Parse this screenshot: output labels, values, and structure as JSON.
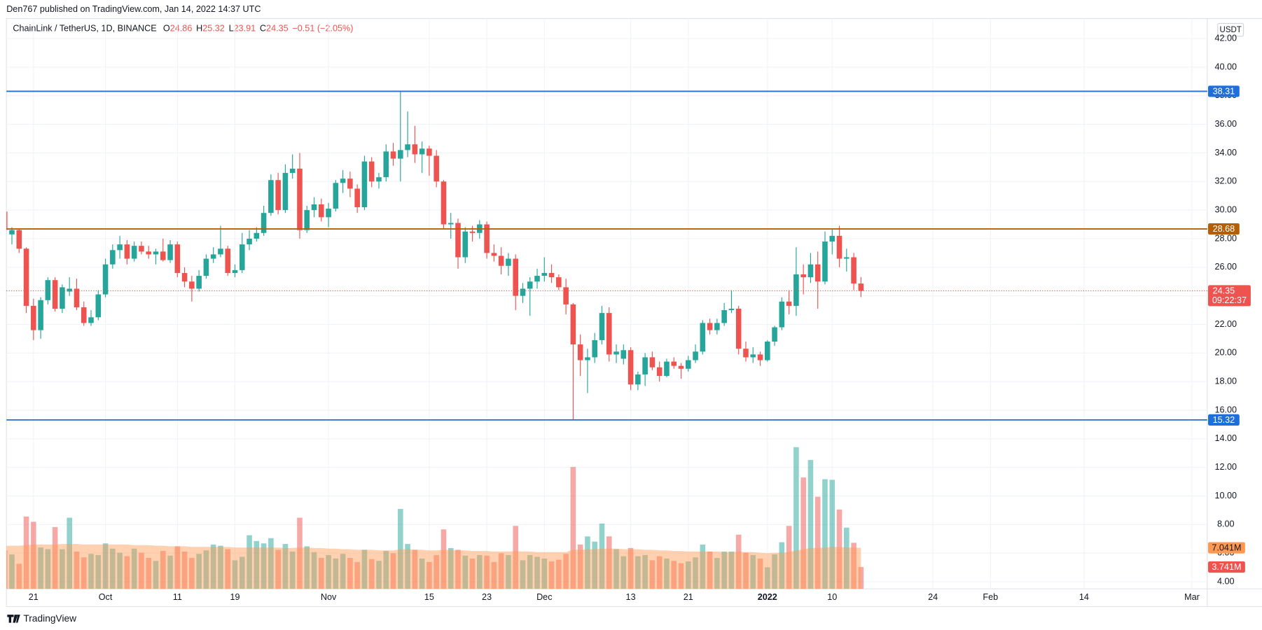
{
  "header": {
    "published": "Den767 published on TradingView.com, Jan 14, 2022 14:37 UTC",
    "brand": "TradingView"
  },
  "chart_data": {
    "type": "candlestick",
    "title": "ChainLink / TetherUS, 1D, BINANCE",
    "legend": [
      {
        "key": "O",
        "value": "24.86"
      },
      {
        "key": "H",
        "value": "25.32"
      },
      {
        "key": "L",
        "value": "23.91"
      },
      {
        "key": "C",
        "value": "24.35"
      }
    ],
    "change": "−0.51 (−2.05%)",
    "currency": "USDT",
    "countdown": "09:22:37",
    "up_color": "#26a69a",
    "down_color": "#ef5350",
    "grid": true,
    "xlim": [
      0.24,
      167.13
    ],
    "ylim": [
      3.5,
      43.4
    ],
    "yticks": [
      {
        "value": 4,
        "label": "4.00"
      },
      {
        "value": 6,
        "label": "6.00"
      },
      {
        "value": 8,
        "label": "8.00"
      },
      {
        "value": 10,
        "label": "10.00"
      },
      {
        "value": 12,
        "label": "12.00"
      },
      {
        "value": 14,
        "label": "14.00"
      },
      {
        "value": 16,
        "label": "16.00"
      },
      {
        "value": 18,
        "label": "18.00"
      },
      {
        "value": 20,
        "label": "20.00"
      },
      {
        "value": 22,
        "label": "22.00"
      },
      {
        "value": 24,
        "label": "24.00"
      },
      {
        "value": 26,
        "label": "26.00"
      },
      {
        "value": 28,
        "label": "28.00"
      },
      {
        "value": 30,
        "label": "30.00"
      },
      {
        "value": 32,
        "label": "32.00"
      },
      {
        "value": 34,
        "label": "34.00"
      },
      {
        "value": 36,
        "label": "36.00"
      },
      {
        "value": 38,
        "label": "38.00"
      },
      {
        "value": 40,
        "label": "40.00"
      },
      {
        "value": 42,
        "label": "42.00"
      }
    ],
    "xticks": [
      {
        "value": 4,
        "label": "21"
      },
      {
        "value": 14,
        "label": "Oct"
      },
      {
        "value": 24,
        "label": "11"
      },
      {
        "value": 32,
        "label": "19"
      },
      {
        "value": 45,
        "label": "Nov"
      },
      {
        "value": 59,
        "label": "15"
      },
      {
        "value": 67,
        "label": "23"
      },
      {
        "value": 75,
        "label": "Dec"
      },
      {
        "value": 87,
        "label": "13"
      },
      {
        "value": 95,
        "label": "21"
      },
      {
        "value": 106,
        "label": "2022",
        "bold": true
      },
      {
        "value": 115,
        "label": "10"
      },
      {
        "value": 129,
        "label": "24"
      },
      {
        "value": 137,
        "label": "Feb"
      },
      {
        "value": 150,
        "label": "14"
      },
      {
        "value": 165,
        "label": "Mar"
      }
    ],
    "lines": [
      {
        "value": 38.31,
        "color": "#1e6fd9"
      },
      {
        "value": 28.68,
        "color": "#b45f06"
      },
      {
        "value": 15.32,
        "color": "#1e6fd9"
      }
    ],
    "candles": [
      [
        29.9,
        30.1,
        28.5,
        28.6
      ],
      [
        28.3,
        28.8,
        27.6,
        28.6
      ],
      [
        28.6,
        28.7,
        27.0,
        27.3
      ],
      [
        27.3,
        27.4,
        22.8,
        23.3
      ],
      [
        23.3,
        23.8,
        20.9,
        21.6
      ],
      [
        21.6,
        23.9,
        21.0,
        23.7
      ],
      [
        23.7,
        25.3,
        23.4,
        25.1
      ],
      [
        25.1,
        25.3,
        22.9,
        23.1
      ],
      [
        23.1,
        24.8,
        22.8,
        24.6
      ],
      [
        24.3,
        25.3,
        24.0,
        24.5
      ],
      [
        24.5,
        25.2,
        23.0,
        23.2
      ],
      [
        23.2,
        23.6,
        21.9,
        22.1
      ],
      [
        22.1,
        23.0,
        21.9,
        22.5
      ],
      [
        22.5,
        24.4,
        22.3,
        24.1
      ],
      [
        24.1,
        26.6,
        23.9,
        26.2
      ],
      [
        26.2,
        27.6,
        25.9,
        27.2
      ],
      [
        27.2,
        28.2,
        26.6,
        27.6
      ],
      [
        27.6,
        27.9,
        26.2,
        26.6
      ],
      [
        26.6,
        27.8,
        26.4,
        27.5
      ],
      [
        27.5,
        27.8,
        26.9,
        27.1
      ],
      [
        27.1,
        27.5,
        26.6,
        26.9
      ],
      [
        26.9,
        27.3,
        26.2,
        27.1
      ],
      [
        27.1,
        28.0,
        26.4,
        26.5
      ],
      [
        26.5,
        27.9,
        26.3,
        27.6
      ],
      [
        27.6,
        27.8,
        25.3,
        25.6
      ],
      [
        25.6,
        26.0,
        24.6,
        25.0
      ],
      [
        25.0,
        25.4,
        23.6,
        24.5
      ],
      [
        24.5,
        25.8,
        24.3,
        25.4
      ],
      [
        25.4,
        26.9,
        25.2,
        26.6
      ],
      [
        26.6,
        27.4,
        26.3,
        26.9
      ],
      [
        26.9,
        28.9,
        26.7,
        27.3
      ],
      [
        27.3,
        27.5,
        25.4,
        25.6
      ],
      [
        25.6,
        26.2,
        25.3,
        25.8
      ],
      [
        25.8,
        28.4,
        25.6,
        27.6
      ],
      [
        27.6,
        28.6,
        27.2,
        28.0
      ],
      [
        28.0,
        28.8,
        27.8,
        28.4
      ],
      [
        28.4,
        30.3,
        28.2,
        29.8
      ],
      [
        29.8,
        32.5,
        29.6,
        32.1
      ],
      [
        32.1,
        32.6,
        29.7,
        30.0
      ],
      [
        30.0,
        33.2,
        29.8,
        32.6
      ],
      [
        32.6,
        33.9,
        32.2,
        32.9
      ],
      [
        32.9,
        34.0,
        28.0,
        28.6
      ],
      [
        28.6,
        30.3,
        28.4,
        30.0
      ],
      [
        30.0,
        30.9,
        29.5,
        30.4
      ],
      [
        30.4,
        30.8,
        29.2,
        29.5
      ],
      [
        29.5,
        30.5,
        28.8,
        30.1
      ],
      [
        30.1,
        32.1,
        29.9,
        31.9
      ],
      [
        31.9,
        32.8,
        31.2,
        32.2
      ],
      [
        32.2,
        32.7,
        30.9,
        31.5
      ],
      [
        31.5,
        31.8,
        29.8,
        30.2
      ],
      [
        30.2,
        33.8,
        30.0,
        33.4
      ],
      [
        33.4,
        33.7,
        31.6,
        32.0
      ],
      [
        32.0,
        32.6,
        31.5,
        32.3
      ],
      [
        32.3,
        34.6,
        32.0,
        34.1
      ],
      [
        34.1,
        34.7,
        33.1,
        33.6
      ],
      [
        33.6,
        38.3,
        32.0,
        34.2
      ],
      [
        34.2,
        36.9,
        33.7,
        34.6
      ],
      [
        34.6,
        35.9,
        33.3,
        33.9
      ],
      [
        33.9,
        34.8,
        32.6,
        34.3
      ],
      [
        34.3,
        34.5,
        32.4,
        33.8
      ],
      [
        33.8,
        34.2,
        31.6,
        32.0
      ],
      [
        32.0,
        32.1,
        28.7,
        29.0
      ],
      [
        29.0,
        29.8,
        28.0,
        29.1
      ],
      [
        29.1,
        29.4,
        25.9,
        26.7
      ],
      [
        26.7,
        28.8,
        26.3,
        28.5
      ],
      [
        28.5,
        28.9,
        27.8,
        28.4
      ],
      [
        28.4,
        29.3,
        28.0,
        29.0
      ],
      [
        29.0,
        29.2,
        26.6,
        27.0
      ],
      [
        27.0,
        27.6,
        26.4,
        26.8
      ],
      [
        26.8,
        27.4,
        25.5,
        26.1
      ],
      [
        26.1,
        27.0,
        25.4,
        26.6
      ],
      [
        26.6,
        26.9,
        23.0,
        24.0
      ],
      [
        24.0,
        24.9,
        23.5,
        24.5
      ],
      [
        24.5,
        25.3,
        22.6,
        25.0
      ],
      [
        25.0,
        25.9,
        24.5,
        25.4
      ],
      [
        25.4,
        26.7,
        25.0,
        25.6
      ],
      [
        25.6,
        26.2,
        24.9,
        25.3
      ],
      [
        25.3,
        25.5,
        24.4,
        24.6
      ],
      [
        24.6,
        25.2,
        22.7,
        23.4
      ],
      [
        23.4,
        23.5,
        15.32,
        20.6
      ],
      [
        20.6,
        21.3,
        18.4,
        19.5
      ],
      [
        19.5,
        20.3,
        17.2,
        19.7
      ],
      [
        19.7,
        21.4,
        19.3,
        20.9
      ],
      [
        20.9,
        23.3,
        20.6,
        22.8
      ],
      [
        22.8,
        23.2,
        19.4,
        19.9
      ],
      [
        19.9,
        20.6,
        19.3,
        20.1
      ],
      [
        19.6,
        20.6,
        19.2,
        20.2
      ],
      [
        20.2,
        20.4,
        17.4,
        17.8
      ],
      [
        17.8,
        18.7,
        17.4,
        18.5
      ],
      [
        18.5,
        20.0,
        17.7,
        19.7
      ],
      [
        19.7,
        20.1,
        18.8,
        19.0
      ],
      [
        19.0,
        19.4,
        18.0,
        18.4
      ],
      [
        18.4,
        19.6,
        18.3,
        19.4
      ],
      [
        19.4,
        19.7,
        18.9,
        19.1
      ],
      [
        19.1,
        19.3,
        18.2,
        18.9
      ],
      [
        18.9,
        19.8,
        18.7,
        19.5
      ],
      [
        19.5,
        20.6,
        19.3,
        20.1
      ],
      [
        20.1,
        22.3,
        19.9,
        22.1
      ],
      [
        22.1,
        22.4,
        21.3,
        21.6
      ],
      [
        21.6,
        22.4,
        21.3,
        22.1
      ],
      [
        22.1,
        23.5,
        21.9,
        23.0
      ],
      [
        23.0,
        24.4,
        22.8,
        23.1
      ],
      [
        23.1,
        23.3,
        19.9,
        20.3
      ],
      [
        20.3,
        20.8,
        19.4,
        19.7
      ],
      [
        19.7,
        20.4,
        19.3,
        19.9
      ],
      [
        19.9,
        20.1,
        19.1,
        19.5
      ],
      [
        19.5,
        20.9,
        19.4,
        20.8
      ],
      [
        20.8,
        21.9,
        20.5,
        21.8
      ],
      [
        21.8,
        23.9,
        21.6,
        23.6
      ],
      [
        23.6,
        24.4,
        22.7,
        23.3
      ],
      [
        23.3,
        27.4,
        22.6,
        25.5
      ],
      [
        25.5,
        26.2,
        24.1,
        25.3
      ],
      [
        25.3,
        27.0,
        24.9,
        26.2
      ],
      [
        26.2,
        27.1,
        23.1,
        25.0
      ],
      [
        25.0,
        28.5,
        24.8,
        27.8
      ],
      [
        27.8,
        28.7,
        26.9,
        28.2
      ],
      [
        28.2,
        28.9,
        26.0,
        26.6
      ],
      [
        26.6,
        27.3,
        25.7,
        26.7
      ],
      [
        26.7,
        27.0,
        24.4,
        24.86
      ],
      [
        24.86,
        25.32,
        23.91,
        24.35
      ]
    ],
    "volume": {
      "ylim": [
        0,
        97.8
      ],
      "ma_color": "#ff9850",
      "values": [
        6.6,
        5.9,
        4.3,
        12.4,
        11.5,
        7.1,
        6.8,
        10.6,
        6.8,
        12.2,
        6.4,
        5.4,
        6.0,
        5.8,
        7.8,
        6.9,
        6.2,
        5.6,
        6.9,
        6.2,
        5.3,
        4.8,
        6.5,
        5.7,
        7.3,
        6.4,
        5.3,
        6.0,
        6.6,
        7.6,
        7.4,
        6.8,
        4.9,
        5.5,
        9.2,
        8.2,
        7.8,
        8.7,
        6.7,
        7.7,
        6.4,
        12.2,
        7.3,
        6.3,
        5.3,
        5.8,
        5.2,
        6.0,
        5.3,
        4.6,
        6.7,
        5.1,
        4.8,
        6.5,
        6.1,
        13.7,
        7.7,
        6.7,
        5.2,
        4.6,
        5.8,
        10.2,
        7.0,
        6.7,
        5.7,
        5.2,
        5.8,
        5.7,
        4.6,
        6.1,
        5.8,
        10.8,
        4.9,
        5.8,
        5.5,
        5.2,
        4.7,
        5.0,
        6.0,
        20.9,
        7.6,
        9.0,
        8.1,
        11.2,
        9.0,
        6.8,
        5.6,
        7.0,
        5.6,
        5.8,
        4.9,
        5.6,
        5.2,
        4.8,
        4.4,
        4.7,
        5.4,
        7.6,
        6.4,
        5.3,
        6.4,
        6.4,
        9.3,
        6.2,
        5.8,
        5.2,
        3.7,
        5.9,
        8.0,
        10.8,
        24.3,
        19.1,
        22.1,
        15.8,
        18.8,
        18.7,
        13.6,
        10.5,
        7.9,
        3.741
      ],
      "ma": [
        7.4,
        7.4,
        7.4,
        7.5,
        7.6,
        7.6,
        7.6,
        7.6,
        7.7,
        7.7,
        7.7,
        7.6,
        7.6,
        7.6,
        7.6,
        7.6,
        7.6,
        7.6,
        7.5,
        7.5,
        7.5,
        7.4,
        7.4,
        7.3,
        7.3,
        7.3,
        7.2,
        7.2,
        7.2,
        7.2,
        7.2,
        7.2,
        7.1,
        7.1,
        7.1,
        7.1,
        7.1,
        7.1,
        7.1,
        7.0,
        7.0,
        7.1,
        7.1,
        7.0,
        7.0,
        6.9,
        6.9,
        6.8,
        6.8,
        6.7,
        6.7,
        6.7,
        6.6,
        6.6,
        6.6,
        6.8,
        6.8,
        6.7,
        6.7,
        6.6,
        6.6,
        6.7,
        6.7,
        6.6,
        6.6,
        6.5,
        6.5,
        6.5,
        6.4,
        6.4,
        6.4,
        6.5,
        6.4,
        6.4,
        6.3,
        6.3,
        6.3,
        6.3,
        6.3,
        6.7,
        6.7,
        6.8,
        6.8,
        6.9,
        6.9,
        6.9,
        6.8,
        6.8,
        6.8,
        6.7,
        6.7,
        6.6,
        6.6,
        6.5,
        6.5,
        6.4,
        6.4,
        6.4,
        6.4,
        6.4,
        6.3,
        6.3,
        6.4,
        6.3,
        6.3,
        6.2,
        6.1,
        6.2,
        6.2,
        6.3,
        6.6,
        6.8,
        7.0,
        7.0,
        7.1,
        7.2,
        7.2,
        7.1,
        7.1,
        7.041
      ],
      "value_label": "3.741M",
      "ma_label": "7.041M"
    }
  }
}
